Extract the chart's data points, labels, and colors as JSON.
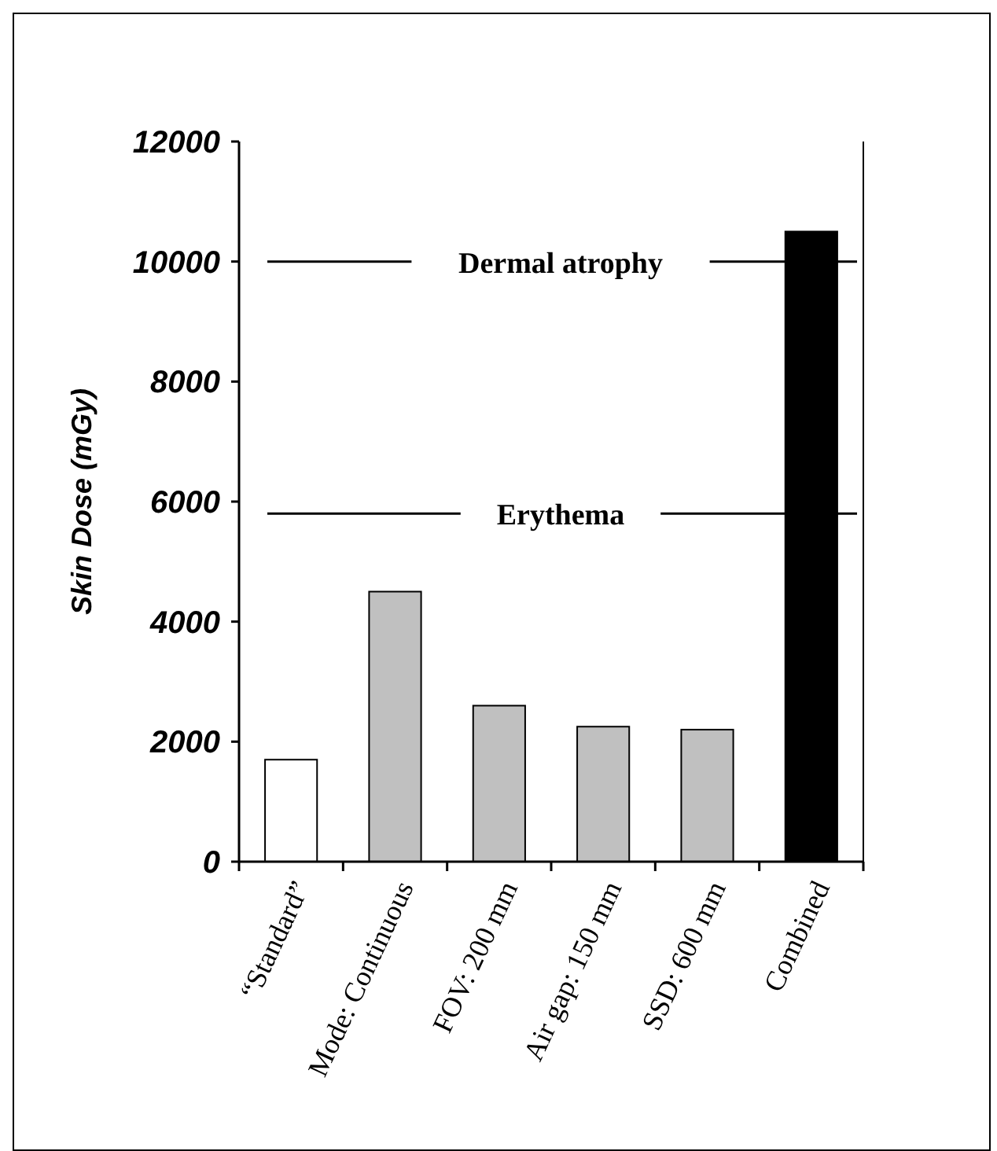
{
  "chart_data": {
    "type": "bar",
    "ylabel": "Skin Dose (mGy)",
    "categories": [
      "“Standard”",
      "Mode: Continuous",
      "FOV: 200 mm",
      "Air gap: 150 mm",
      "SSD: 600 mm",
      "Combined"
    ],
    "values": [
      1700,
      4500,
      2600,
      2250,
      2200,
      10500
    ],
    "colors": [
      "#ffffff",
      "#c0c0c0",
      "#c0c0c0",
      "#c0c0c0",
      "#c0c0c0",
      "#000000"
    ],
    "ylim": [
      0,
      12000
    ],
    "yticks": [
      0,
      2000,
      4000,
      6000,
      8000,
      10000,
      12000
    ],
    "grid": false,
    "ref_lines": [
      {
        "axis": "y",
        "value": 10000,
        "label": "Dermal atrophy",
        "color": "#000000"
      },
      {
        "axis": "y",
        "value": 5800,
        "label": "Erythema",
        "color": "#000000"
      }
    ]
  }
}
